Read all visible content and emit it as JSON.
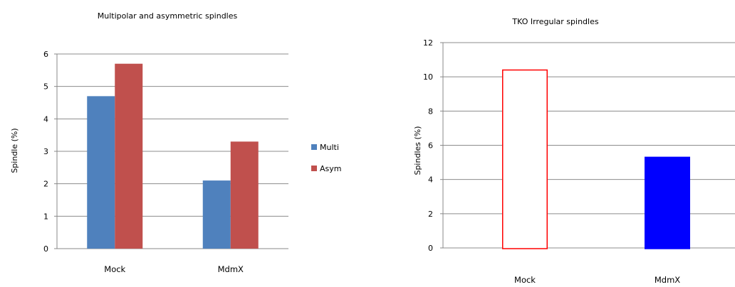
{
  "chart_data": [
    {
      "type": "bar",
      "title": "Multipolar and asymmetric spindles",
      "xlabel": "",
      "ylabel": "Spindle (%)",
      "categories": [
        "Mock",
        "MdmX"
      ],
      "series": [
        {
          "name": "Multi",
          "values": [
            4.7,
            2.1
          ],
          "color": "#4f81bd"
        },
        {
          "name": "Asym",
          "values": [
            5.7,
            3.3
          ],
          "color": "#c0504d"
        }
      ],
      "ylim": [
        0,
        6
      ],
      "yticks": [
        0,
        1,
        2,
        3,
        4,
        5,
        6
      ],
      "grid": true,
      "legend": "right"
    },
    {
      "type": "bar",
      "title": "TKO Irregular spindles",
      "xlabel": "",
      "ylabel": "Spindles (%)",
      "categories": [
        "Mock",
        "MdmX"
      ],
      "values": [
        10.4,
        5.3
      ],
      "bar_styles": [
        {
          "fill": "#ffffff",
          "stroke": "#ff0000"
        },
        {
          "fill": "#0000ff",
          "stroke": "#0000ff"
        }
      ],
      "ylim": [
        0,
        12
      ],
      "yticks": [
        0,
        2,
        4,
        6,
        8,
        10,
        12
      ],
      "grid": true,
      "legend": "none"
    }
  ]
}
